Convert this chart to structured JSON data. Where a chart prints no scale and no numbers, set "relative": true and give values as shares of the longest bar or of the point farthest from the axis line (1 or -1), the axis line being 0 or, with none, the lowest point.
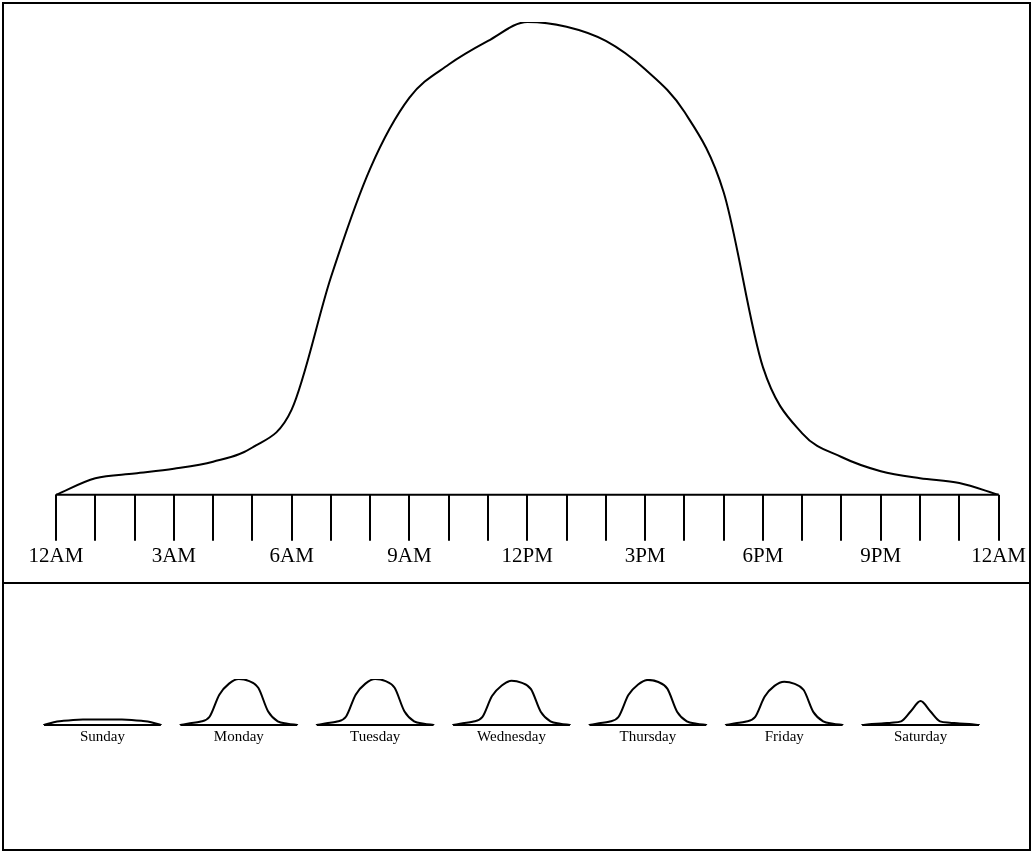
{
  "chart_data": [
    {
      "type": "line",
      "relative": true,
      "marker": "none",
      "line_style": "solid",
      "tick_labels": "x",
      "categories": [
        "12AM",
        null,
        null,
        "3AM",
        null,
        null,
        "6AM",
        null,
        null,
        "9AM",
        null,
        null,
        "12PM",
        null,
        null,
        "3PM",
        null,
        null,
        "6PM",
        null,
        null,
        "9PM",
        null,
        null,
        "12AM"
      ],
      "series": [
        {
          "color": "#000000",
          "values": [
            0,
            0.035,
            0.045,
            0.055,
            0.07,
            0.1,
            0.18,
            0.46,
            0.69,
            0.84,
            0.91,
            0.96,
            1,
            0.99,
            0.96,
            0.9,
            0.81,
            0.64,
            0.27,
            0.13,
            0.08,
            0.05,
            0.035,
            0.025,
            0
          ]
        }
      ]
    },
    {
      "type": "line",
      "relative": true,
      "marker": "none",
      "line_style": "solid",
      "tick_labels": "x",
      "categories": [
        null,
        null,
        null,
        null,
        null,
        null,
        "Sunday",
        null,
        null,
        null,
        null,
        null,
        null,
        null,
        null,
        null,
        null,
        null,
        null,
        null,
        "Monday",
        null,
        null,
        null,
        null,
        null,
        null,
        null,
        null,
        null,
        null,
        null,
        null,
        null,
        "Tuesday",
        null,
        null,
        null,
        null,
        null,
        null,
        null,
        null,
        null,
        null,
        null,
        null,
        null,
        "Wednesday",
        null,
        null,
        null,
        null,
        null,
        null,
        null,
        null,
        null,
        null,
        null,
        null,
        null,
        "Thursday",
        null,
        null,
        null,
        null,
        null,
        null,
        null,
        null,
        null,
        null,
        null,
        null,
        null,
        "Friday",
        null,
        null,
        null,
        null,
        null,
        null,
        null,
        null,
        null,
        null,
        null,
        null,
        null,
        "Saturday",
        null,
        null,
        null,
        null,
        null,
        null
      ],
      "series": [
        {
          "color": "#000000",
          "values": [
            0,
            0.06,
            0.09,
            0.11,
            0.12,
            0.12,
            0.12,
            0.12,
            0.12,
            0.11,
            0.09,
            0.06,
            0,
            null,
            0,
            0.04,
            0.07,
            0.18,
            0.66,
            0.9,
            1,
            0.96,
            0.81,
            0.3,
            0.08,
            0.03,
            0,
            null,
            0,
            0.04,
            0.07,
            0.18,
            0.66,
            0.9,
            1,
            0.96,
            0.81,
            0.3,
            0.08,
            0.03,
            0,
            null,
            0,
            0.04,
            0.07,
            0.17,
            0.63,
            0.86,
            0.96,
            0.92,
            0.78,
            0.29,
            0.08,
            0.03,
            0,
            null,
            0,
            0.04,
            0.07,
            0.18,
            0.65,
            0.88,
            0.98,
            0.94,
            0.79,
            0.29,
            0.08,
            0.03,
            0,
            null,
            0,
            0.04,
            0.07,
            0.17,
            0.62,
            0.85,
            0.94,
            0.9,
            0.76,
            0.28,
            0.08,
            0.03,
            0,
            null,
            0,
            0.02,
            0.03,
            0.05,
            0.08,
            0.3,
            0.52,
            0.3,
            0.08,
            0.05,
            0.03,
            0.02,
            0
          ]
        }
      ]
    }
  ]
}
